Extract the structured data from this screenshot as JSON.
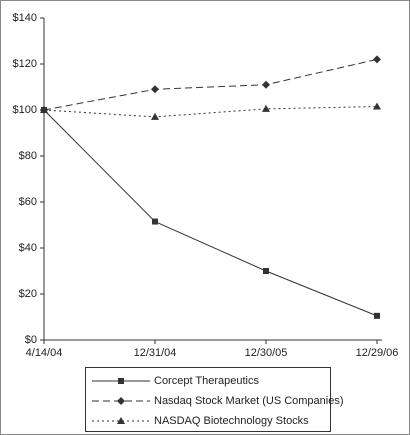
{
  "chart_data": {
    "type": "line",
    "categories": [
      "4/14/04",
      "12/31/04",
      "12/30/05",
      "12/29/06"
    ],
    "series": [
      {
        "name": "Corcept Therapeutics",
        "color": "#333333",
        "line_style": "solid",
        "marker": "square",
        "values": [
          100,
          51.5,
          30,
          10.5
        ]
      },
      {
        "name": "Nasdaq Stock Market (US Companies)",
        "color": "#333333",
        "line_style": "dashed",
        "marker": "diamond",
        "values": [
          100,
          109,
          111,
          122
        ]
      },
      {
        "name": "NASDAQ Biotechnology Stocks",
        "color": "#333333",
        "line_style": "dotted",
        "marker": "triangle",
        "values": [
          100,
          97,
          100.5,
          101.5
        ]
      }
    ],
    "ylim": [
      0,
      140
    ],
    "yticks": [
      {
        "value": 0,
        "label": "$0"
      },
      {
        "value": 20,
        "label": "$20"
      },
      {
        "value": 40,
        "label": "$40"
      },
      {
        "value": 60,
        "label": "$60"
      },
      {
        "value": 80,
        "label": "$80"
      },
      {
        "value": 100,
        "label": "$100"
      },
      {
        "value": 120,
        "label": "$120"
      },
      {
        "value": 140,
        "label": "$140"
      }
    ],
    "grid": false,
    "legend": "bottom"
  }
}
